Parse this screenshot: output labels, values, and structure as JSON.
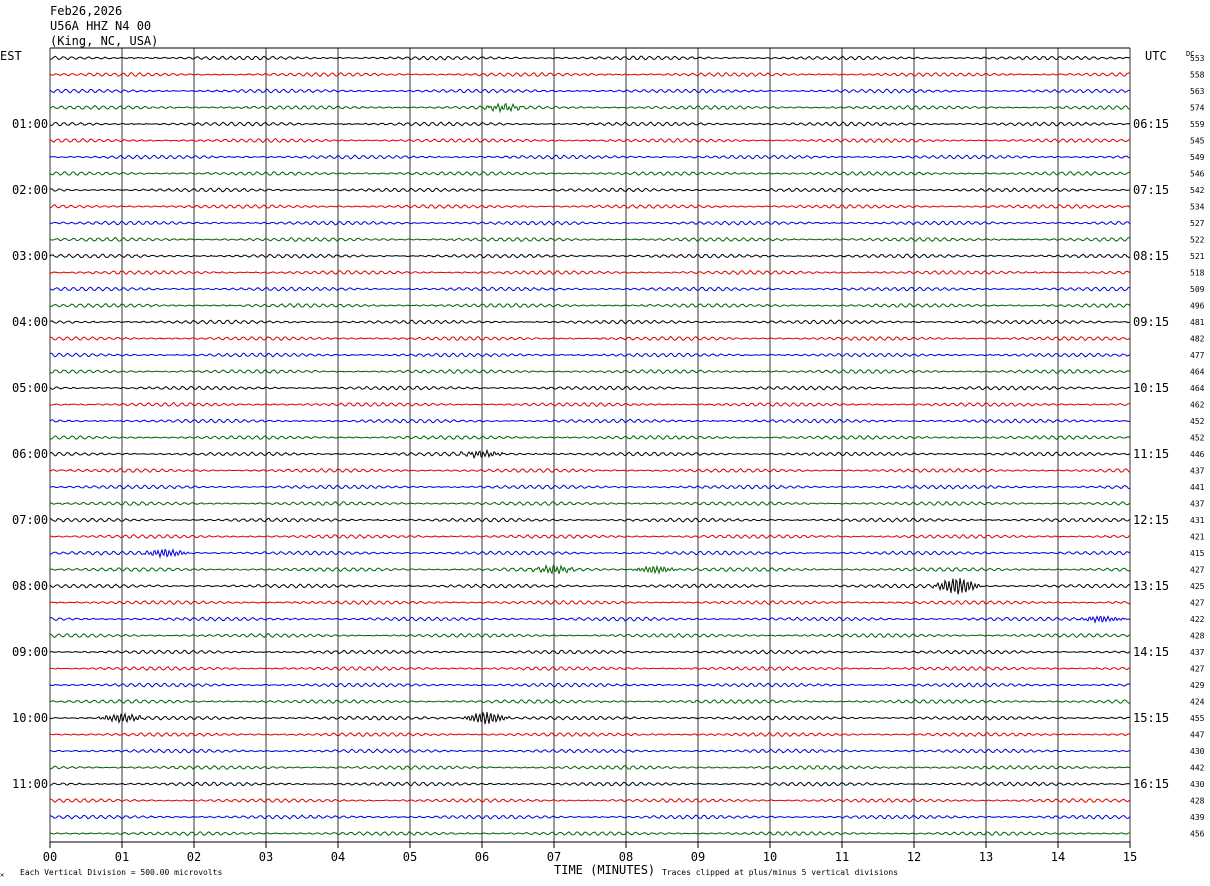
{
  "header": {
    "date": "Feb26,2026",
    "station": "U56A HHZ N4 00",
    "location": "(King, NC, USA)"
  },
  "left_timezone": "EST",
  "right_timezone": "UTC",
  "dc_label": "DC",
  "footer": {
    "scale_note": "Each Vertical Division =  500.00 microvolts",
    "xlabel": "TIME (MINUTES)",
    "clip_note": "Traces clipped at plus/minus 5 vertical divisions",
    "corner_mark": "✕"
  },
  "colors": {
    "trace_cycle": [
      "#000000",
      "#e00000",
      "#0000e0",
      "#006400"
    ],
    "grid": "#000000"
  },
  "chart_data": {
    "type": "line",
    "subtype": "helicorder",
    "x_ticks": [
      "00",
      "01",
      "02",
      "03",
      "04",
      "05",
      "06",
      "07",
      "08",
      "09",
      "10",
      "11",
      "12",
      "13",
      "14",
      "15"
    ],
    "xlim": [
      0,
      15
    ],
    "left_hour_labels": [
      "01:00",
      "02:00",
      "03:00",
      "04:00",
      "05:00",
      "06:00",
      "07:00",
      "08:00",
      "09:00",
      "10:00",
      "11:00"
    ],
    "right_hour_labels": [
      "06:15",
      "07:15",
      "08:15",
      "09:15",
      "10:15",
      "11:15",
      "12:15",
      "13:15",
      "14:15",
      "15:15",
      "16:15"
    ],
    "dc_offsets": [
      553,
      558,
      563,
      574,
      559,
      545,
      549,
      546,
      542,
      534,
      527,
      522,
      521,
      518,
      509,
      496,
      481,
      482,
      477,
      464,
      464,
      462,
      452,
      452,
      446,
      437,
      441,
      437,
      431,
      421,
      415,
      427,
      425,
      427,
      422,
      428,
      437,
      427,
      429,
      424,
      455,
      447,
      430,
      442,
      430,
      428,
      439,
      456
    ],
    "events": [
      {
        "trace": 32,
        "minute": 12.6,
        "amplitude": 4.5
      },
      {
        "trace": 40,
        "minute": 6.05,
        "amplitude": 3.2
      },
      {
        "trace": 40,
        "minute": 1.0,
        "amplitude": 2.2
      },
      {
        "trace": 30,
        "minute": 1.6,
        "amplitude": 2.0
      },
      {
        "trace": 31,
        "minute": 7.0,
        "amplitude": 2.0
      },
      {
        "trace": 31,
        "minute": 8.4,
        "amplitude": 1.8
      },
      {
        "trace": 34,
        "minute": 14.6,
        "amplitude": 1.6
      },
      {
        "trace": 24,
        "minute": 6.0,
        "amplitude": 1.6
      },
      {
        "trace": 3,
        "minute": 6.3,
        "amplitude": 1.6
      }
    ]
  }
}
